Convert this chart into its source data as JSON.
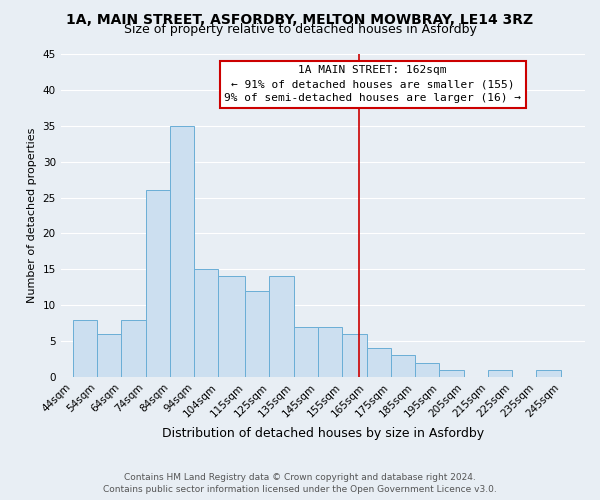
{
  "title": "1A, MAIN STREET, ASFORDBY, MELTON MOWBRAY, LE14 3RZ",
  "subtitle": "Size of property relative to detached houses in Asfordby",
  "xlabel": "Distribution of detached houses by size in Asfordby",
  "ylabel": "Number of detached properties",
  "bins": [
    "44sqm",
    "54sqm",
    "64sqm",
    "74sqm",
    "84sqm",
    "94sqm",
    "104sqm",
    "115sqm",
    "125sqm",
    "135sqm",
    "145sqm",
    "155sqm",
    "165sqm",
    "175sqm",
    "185sqm",
    "195sqm",
    "205sqm",
    "215sqm",
    "225sqm",
    "235sqm",
    "245sqm"
  ],
  "counts": [
    8,
    6,
    8,
    26,
    35,
    15,
    14,
    12,
    14,
    7,
    7,
    6,
    4,
    3,
    2,
    1,
    0,
    1,
    0,
    1
  ],
  "bin_edges": [
    44,
    54,
    64,
    74,
    84,
    94,
    104,
    115,
    125,
    135,
    145,
    155,
    165,
    175,
    185,
    195,
    205,
    215,
    225,
    235,
    245
  ],
  "bar_color": "#ccdff0",
  "bar_edge_color": "#6aaed6",
  "vline_x": 162,
  "vline_color": "#cc0000",
  "annotation_title": "1A MAIN STREET: 162sqm",
  "annotation_line1": "← 91% of detached houses are smaller (155)",
  "annotation_line2": "9% of semi-detached houses are larger (16) →",
  "annotation_box_color": "#ffffff",
  "annotation_box_edge": "#cc0000",
  "ylim": [
    0,
    45
  ],
  "xlim_left": 39,
  "xlim_right": 255,
  "footer1": "Contains HM Land Registry data © Crown copyright and database right 2024.",
  "footer2": "Contains public sector information licensed under the Open Government Licence v3.0.",
  "bg_color": "#e8eef4",
  "grid_color": "#ffffff",
  "title_fontsize": 10,
  "subtitle_fontsize": 9,
  "xlabel_fontsize": 9,
  "ylabel_fontsize": 8,
  "tick_fontsize": 7.5,
  "footer_fontsize": 6.5
}
